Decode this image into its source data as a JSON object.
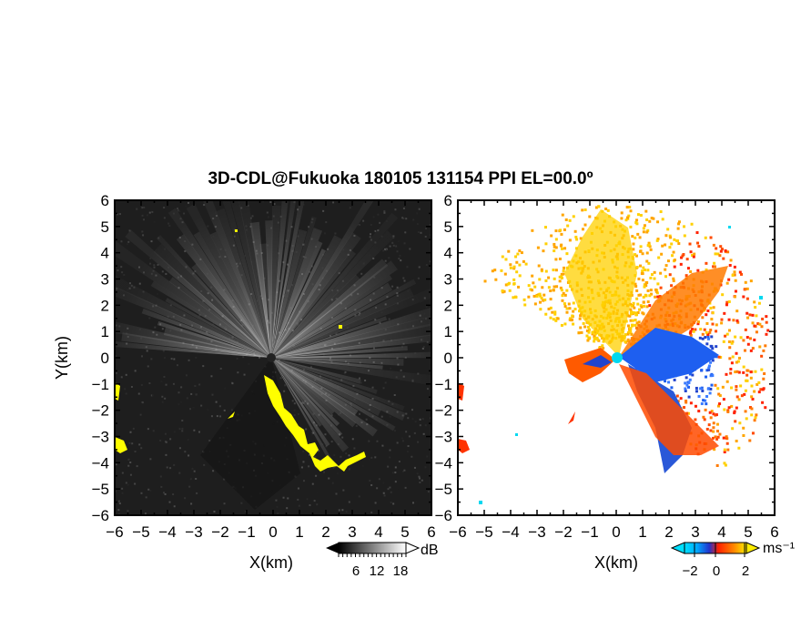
{
  "title": "3D-CDL@Fukuoka 180105 131154 PPI EL=00.0º",
  "chart_data": [
    {
      "type": "heatmap",
      "panel": "left",
      "quantity": "backscatter intensity (grayscale)",
      "xlabel": "X(km)",
      "ylabel": "Y(km)",
      "xlim": [
        -6,
        6
      ],
      "ylim": [
        -6,
        6
      ],
      "x_ticks": [
        "−6",
        "−5",
        "−4",
        "−3",
        "−2",
        "−1",
        "0",
        "1",
        "2",
        "3",
        "4",
        "5",
        "6"
      ],
      "y_ticks": [
        "6",
        "5",
        "4",
        "3",
        "2",
        "1",
        "0",
        "−1",
        "−2",
        "−3",
        "−4",
        "−5",
        "−6"
      ],
      "colorbar": {
        "ticks": [
          "6",
          "12",
          "18"
        ],
        "unit": "dB"
      },
      "highlight_color": "#ffff00",
      "background_color": "#1e1e1e"
    },
    {
      "type": "heatmap",
      "panel": "right",
      "quantity": "radial velocity",
      "xlabel": "X(km)",
      "xlim": [
        -6,
        6
      ],
      "ylim": [
        -6,
        6
      ],
      "x_ticks": [
        "−6",
        "−5",
        "−4",
        "−3",
        "−2",
        "−1",
        "0",
        "1",
        "2",
        "3",
        "4",
        "5",
        "6"
      ],
      "y_ticks": [
        "6",
        "5",
        "4",
        "3",
        "2",
        "1",
        "0",
        "−1",
        "−2",
        "−3",
        "−4",
        "−5",
        "−6"
      ],
      "colorbar": {
        "ticks": [
          "−2",
          "0",
          "2"
        ],
        "unit": "ms⁻¹",
        "colors": [
          "#00e0ff",
          "#0066ff",
          "#2222cc",
          "#ff2200",
          "#ff8800",
          "#ffee00"
        ]
      }
    }
  ]
}
